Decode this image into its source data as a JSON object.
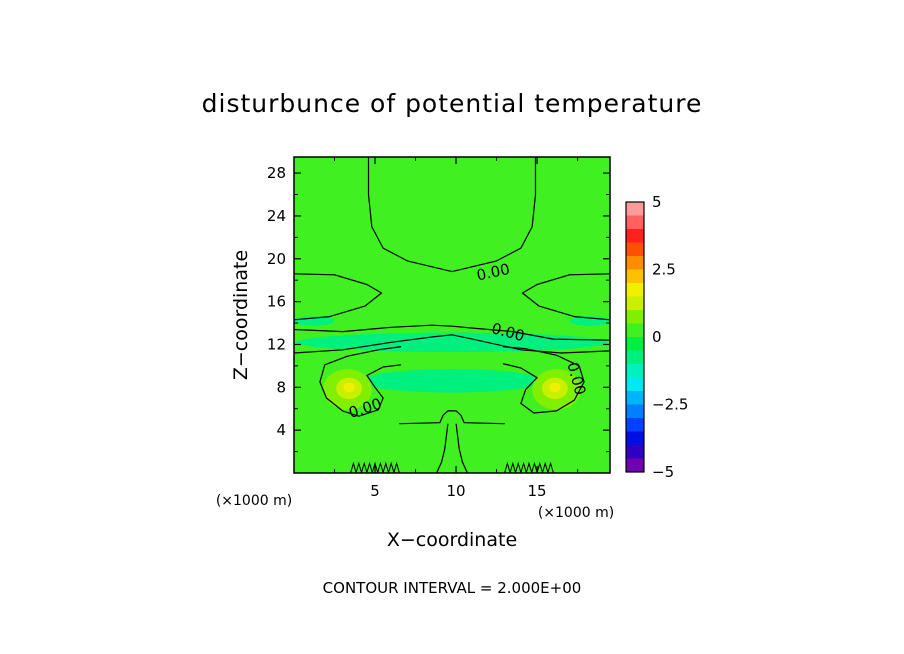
{
  "chart_data": {
    "type": "heatmap",
    "title": "disturbunce of potential temperature",
    "xlabel": "X−coordinate",
    "ylabel": "Z−coordinate",
    "x_unit": "(×1000 m)",
    "y_unit": "(×1000 m)",
    "xlim": [
      0,
      19.5
    ],
    "ylim": [
      0,
      29.5
    ],
    "x_ticks": [
      5,
      10,
      15
    ],
    "y_ticks": [
      4,
      8,
      12,
      16,
      20,
      24,
      28
    ],
    "x_tick_labels": [
      "5",
      "10",
      "15"
    ],
    "y_tick_labels": [
      "4",
      "8",
      "12",
      "16",
      "20",
      "24",
      "28"
    ],
    "colorbar": {
      "range": [
        -5,
        5
      ],
      "ticks": [
        5,
        2.5,
        0,
        -2.5,
        -5
      ],
      "tick_labels": [
        "5",
        "2.5",
        "0",
        "−2.5",
        "−5"
      ],
      "levels": [
        {
          "from": 4.5,
          "to": 5.0,
          "color": "#ff9a9a"
        },
        {
          "from": 4.0,
          "to": 4.5,
          "color": "#ff6060"
        },
        {
          "from": 3.5,
          "to": 4.0,
          "color": "#ff2020"
        },
        {
          "from": 3.0,
          "to": 3.5,
          "color": "#ff5000"
        },
        {
          "from": 2.5,
          "to": 3.0,
          "color": "#ff8c00"
        },
        {
          "from": 2.0,
          "to": 2.5,
          "color": "#ffc000"
        },
        {
          "from": 1.5,
          "to": 2.0,
          "color": "#f0f000"
        },
        {
          "from": 1.0,
          "to": 1.5,
          "color": "#c8f000"
        },
        {
          "from": 0.5,
          "to": 1.0,
          "color": "#80f000"
        },
        {
          "from": 0.0,
          "to": 0.5,
          "color": "#40f020"
        },
        {
          "from": -0.5,
          "to": 0.0,
          "color": "#00f040"
        },
        {
          "from": -1.0,
          "to": -0.5,
          "color": "#00f080"
        },
        {
          "from": -1.5,
          "to": -1.0,
          "color": "#00f0c0"
        },
        {
          "from": -2.0,
          "to": -1.5,
          "color": "#00e8f0"
        },
        {
          "from": -2.5,
          "to": -2.0,
          "color": "#00b4ff"
        },
        {
          "from": -3.0,
          "to": -2.5,
          "color": "#0080ff"
        },
        {
          "from": -3.5,
          "to": -3.0,
          "color": "#0040ff"
        },
        {
          "from": -4.0,
          "to": -3.5,
          "color": "#0010e0"
        },
        {
          "from": -4.5,
          "to": -4.0,
          "color": "#3000c0"
        },
        {
          "from": -5.0,
          "to": -4.5,
          "color": "#7000b0"
        }
      ]
    },
    "regions": [
      {
        "value": 0.3,
        "shape": "ellipse",
        "cx": 9.75,
        "cy": 15.6,
        "rx": 5.5,
        "ry": 1.2
      },
      {
        "value": -0.7,
        "shape": "ellipse",
        "cx": 9.75,
        "cy": 12.2,
        "rx": 9.6,
        "ry": 0.9
      },
      {
        "value": -0.9,
        "shape": "ellipse",
        "cx": 1.2,
        "cy": 14.2,
        "rx": 1.3,
        "ry": 0.45
      },
      {
        "value": -0.9,
        "shape": "ellipse",
        "cx": 18.3,
        "cy": 14.2,
        "rx": 1.3,
        "ry": 0.45
      },
      {
        "value": -0.7,
        "shape": "ellipse",
        "cx": 9.75,
        "cy": 8.6,
        "rx": 5.6,
        "ry": 1.1
      },
      {
        "value": 0.8,
        "shape": "ellipse",
        "cx": 3.3,
        "cy": 7.8,
        "rx": 1.5,
        "ry": 1.9
      },
      {
        "value": 1.3,
        "shape": "ellipse",
        "cx": 3.4,
        "cy": 7.9,
        "rx": 0.8,
        "ry": 1.0
      },
      {
        "value": 1.7,
        "shape": "ellipse",
        "cx": 3.4,
        "cy": 8.0,
        "rx": 0.35,
        "ry": 0.45
      },
      {
        "value": 0.8,
        "shape": "ellipse",
        "cx": 16.2,
        "cy": 7.8,
        "rx": 1.5,
        "ry": 1.9
      },
      {
        "value": 1.3,
        "shape": "ellipse",
        "cx": 16.1,
        "cy": 7.9,
        "rx": 0.8,
        "ry": 1.0
      },
      {
        "value": 1.7,
        "shape": "ellipse",
        "cx": 16.1,
        "cy": 8.0,
        "rx": 0.35,
        "ry": 0.45
      }
    ],
    "contour_labels": [
      {
        "text": "0.00",
        "x": 12.3,
        "y": 18.7,
        "angle": -12
      },
      {
        "text": "0.00",
        "x": 13.2,
        "y": 13.1,
        "angle": 15
      },
      {
        "text": "0.00",
        "x": 17.4,
        "y": 8.8,
        "angle": 75
      },
      {
        "text": "0.00",
        "x": 4.4,
        "y": 6.0,
        "angle": -18
      }
    ],
    "contour_lines": [
      [
        [
          4.6,
          29.5
        ],
        [
          4.6,
          26
        ],
        [
          4.8,
          23
        ],
        [
          5.5,
          21
        ],
        [
          7,
          19.8
        ],
        [
          9.75,
          18.8
        ],
        [
          12.5,
          19.8
        ],
        [
          14,
          21
        ],
        [
          14.7,
          23
        ],
        [
          14.9,
          26
        ],
        [
          14.9,
          29.5
        ]
      ],
      [
        [
          0,
          18.6
        ],
        [
          2.5,
          18.5
        ],
        [
          4.5,
          17.6
        ],
        [
          5.4,
          16.8
        ],
        [
          4.4,
          15.6
        ],
        [
          2.2,
          14.6
        ],
        [
          0,
          14.3
        ]
      ],
      [
        [
          19.5,
          18.6
        ],
        [
          17,
          18.5
        ],
        [
          15,
          17.6
        ],
        [
          14.1,
          16.8
        ],
        [
          15.1,
          15.6
        ],
        [
          17.3,
          14.6
        ],
        [
          19.5,
          14.3
        ]
      ],
      [
        [
          0,
          13.4
        ],
        [
          3,
          13.2
        ],
        [
          6,
          13.6
        ],
        [
          8.5,
          13.8
        ],
        [
          9.75,
          13.7
        ],
        [
          11.2,
          13.5
        ],
        [
          13.5,
          13.2
        ],
        [
          16,
          12.5
        ],
        [
          19.5,
          12.4
        ]
      ],
      [
        [
          0,
          11.2
        ],
        [
          3,
          11.5
        ],
        [
          6,
          12.2
        ],
        [
          8.5,
          12.7
        ],
        [
          9.75,
          12.9
        ],
        [
          11,
          12.5
        ],
        [
          14,
          11.5
        ],
        [
          16.5,
          11.2
        ],
        [
          19.5,
          11.4
        ]
      ],
      [
        [
          6.6,
          11.8
        ],
        [
          5.2,
          11.5
        ],
        [
          3.3,
          10.9
        ],
        [
          1.9,
          10.1
        ],
        [
          1.6,
          8.5
        ],
        [
          2.0,
          7.0
        ],
        [
          3.0,
          5.8
        ],
        [
          4.0,
          5.3
        ],
        [
          5.2,
          5.9
        ],
        [
          5.5,
          7.0
        ],
        [
          5.0,
          8.0
        ],
        [
          4.5,
          9.1
        ],
        [
          5.5,
          9.9
        ],
        [
          6.6,
          10.1
        ]
      ],
      [
        [
          12.9,
          11.8
        ],
        [
          14.3,
          11.6
        ],
        [
          16.2,
          11.0
        ],
        [
          17.6,
          10.0
        ],
        [
          17.9,
          8.5
        ],
        [
          17.3,
          6.8
        ],
        [
          16.2,
          5.8
        ],
        [
          14.8,
          5.6
        ],
        [
          14.0,
          6.5
        ],
        [
          14.3,
          7.8
        ],
        [
          15.0,
          8.9
        ],
        [
          14.0,
          9.8
        ],
        [
          12.9,
          10.2
        ]
      ],
      [
        [
          6.5,
          4.6
        ],
        [
          9.0,
          4.7
        ],
        [
          9.2,
          5.4
        ],
        [
          9.5,
          5.8
        ],
        [
          10.0,
          5.8
        ],
        [
          10.3,
          5.4
        ],
        [
          10.5,
          4.7
        ],
        [
          13.0,
          4.6
        ]
      ],
      [
        [
          8.8,
          0
        ],
        [
          9.1,
          1.0
        ],
        [
          9.3,
          2.2
        ],
        [
          9.4,
          3.4
        ],
        [
          9.5,
          4.6
        ]
      ],
      [
        [
          10.7,
          0
        ],
        [
          10.4,
          1.0
        ],
        [
          10.2,
          2.2
        ],
        [
          10.1,
          3.4
        ],
        [
          10.0,
          4.6
        ]
      ]
    ],
    "ripple_ranges": [
      [
        3.5,
        6.5
      ],
      [
        13.0,
        16.0
      ]
    ]
  },
  "footer": "CONTOUR INTERVAL = 2.000E+00"
}
